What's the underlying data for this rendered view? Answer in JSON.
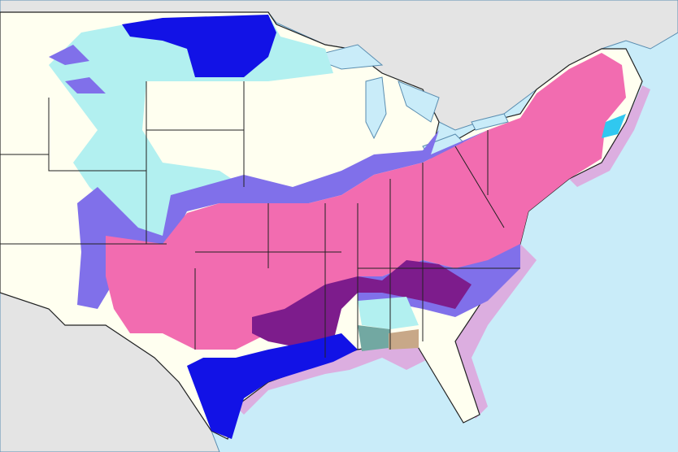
{
  "map": {
    "colors": {
      "ocean": "#c9ecf9",
      "foreign_land": "#e4e4e4",
      "land_no_alert": "#fffff0",
      "pink_zone": "#f26cb0",
      "purple_zone": "#8070ea",
      "dark_purple_zone": "#7d1c8c",
      "blue_zone": "#1212e6",
      "cyan_zone": "#b2f0f0",
      "teal_zone": "#72a8a2",
      "tan_zone": "#c8a888",
      "coastal_marine_zone": "#dcaee0",
      "bright_cyan_zone": "#30c8f0",
      "borders": "#222222"
    }
  }
}
